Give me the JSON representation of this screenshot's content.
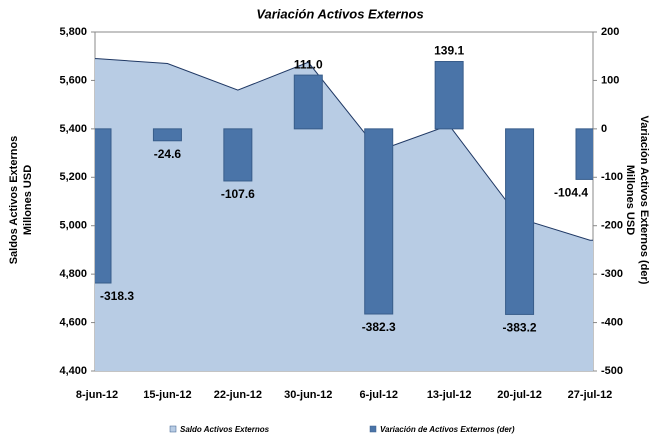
{
  "chart_data": {
    "type": "area-bar",
    "title": "Variación Activos Externos",
    "y_label": [
      "Saldos Activos Externos",
      "Millones USD"
    ],
    "y2_label": [
      "Variación Activos Externos (der)",
      "Millones USD"
    ],
    "categories": [
      "8-jun-12",
      "15-jun-12",
      "22-jun-12",
      "30-jun-12",
      "6-jul-12",
      "13-jul-12",
      "20-jul-12",
      "27-jul-12"
    ],
    "series": [
      {
        "name": "Saldo Activos Externos",
        "type": "area",
        "color": "#b8cce4",
        "line_color": "#1f3864",
        "values": [
          5690,
          5670,
          5560,
          5675,
          5310,
          5415,
          5030,
          4940
        ]
      },
      {
        "name": "Variación de Activos Externos (der)",
        "type": "bar",
        "axis": "y2",
        "color": "#4a74a8",
        "values": [
          -318.3,
          -24.6,
          -107.6,
          111.0,
          -382.3,
          139.1,
          -383.2,
          -104.4
        ],
        "value_labels": [
          "-318.3",
          "-24.6",
          "-107.6",
          "111.0",
          "-382.3",
          "139.1",
          "-383.2",
          "-104.4"
        ]
      }
    ],
    "ylim": [
      4400,
      5800
    ],
    "yticks": [
      {
        "value": 4400,
        "label": "4,400"
      },
      {
        "value": 4600,
        "label": "4,600"
      },
      {
        "value": 4800,
        "label": "4,800"
      },
      {
        "value": 5000,
        "label": "5,000"
      },
      {
        "value": 5200,
        "label": "5,200"
      },
      {
        "value": 5400,
        "label": "5,400"
      },
      {
        "value": 5600,
        "label": "5,600"
      },
      {
        "value": 5800,
        "label": "5,800"
      }
    ],
    "y2lim": [
      -500,
      200
    ],
    "y2ticks": [
      -500,
      -400,
      -300,
      -200,
      -100,
      0,
      100,
      200
    ],
    "legend": "bottom"
  }
}
